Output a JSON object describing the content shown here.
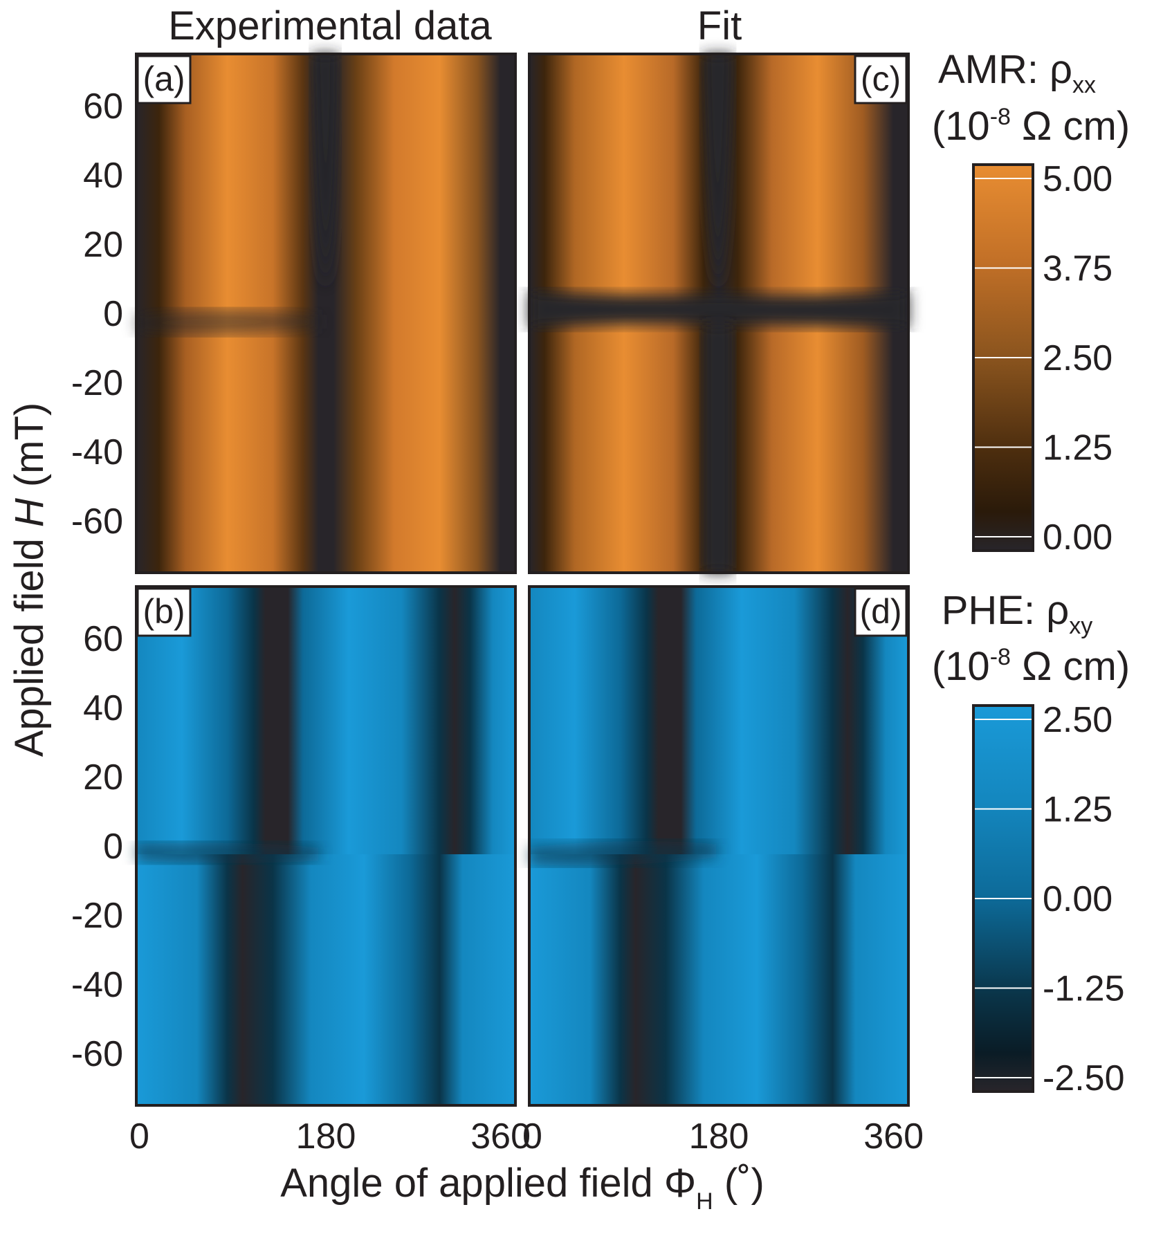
{
  "column_titles": {
    "left": "Experimental data",
    "right": "Fit"
  },
  "ylabel": {
    "prefix": "Applied field ",
    "var": "H",
    "suffix": " (mT)"
  },
  "xlabel": {
    "prefix": "Angle of applied field ",
    "var": "Φ",
    "sub": "H",
    "suffix": " (˚)"
  },
  "colorbar_amr": {
    "title_main": "AMR: ρ",
    "title_sub": "xx",
    "units_a": "(10",
    "units_sup": "-8",
    "units_b": " Ω cm)",
    "ticks": [
      "5.00",
      "3.75",
      "2.50",
      "1.25",
      "0.00"
    ],
    "colors": [
      "#e88d32",
      "#b86a28",
      "#7a4a1c",
      "#3d250c",
      "#28252a"
    ]
  },
  "colorbar_phe": {
    "title_main": "PHE: ρ",
    "title_sub": "xy",
    "units_a": "(10",
    "units_sup": "-8",
    "units_b": " Ω cm)",
    "ticks": [
      "2.50",
      "1.25",
      "0.00",
      "-1.25",
      "-2.50"
    ],
    "colors": [
      "#1a9ad8",
      "#1487bf",
      "#0d6a98",
      "#0a3448",
      "#28252a"
    ]
  },
  "panels": [
    {
      "id": "a",
      "label": "(a)",
      "type": "amr"
    },
    {
      "id": "c",
      "label": "(c)",
      "type": "amr"
    },
    {
      "id": "b",
      "label": "(b)",
      "type": "phe"
    },
    {
      "id": "d",
      "label": "(d)",
      "type": "phe"
    }
  ],
  "chart_data": {
    "type": "heatmap",
    "x": {
      "label": "Angle of applied field Φ_H (˚)",
      "range": [
        0,
        360
      ],
      "ticks": [
        "0",
        "180",
        "360"
      ]
    },
    "y": {
      "label": "Applied field H (mT)",
      "range": [
        -75,
        75
      ],
      "ticks": [
        "60",
        "40",
        "20",
        "0",
        "-20",
        "-40",
        "-60"
      ]
    },
    "panels": [
      {
        "panel": "(a)",
        "quantity": "AMR ρxx",
        "source": "Experimental data",
        "zrange": [
          0,
          5
        ],
        "colormap": "orange"
      },
      {
        "panel": "(c)",
        "quantity": "AMR ρxx",
        "source": "Fit",
        "zrange": [
          0,
          5
        ],
        "colormap": "orange"
      },
      {
        "panel": "(b)",
        "quantity": "PHE ρxy",
        "source": "Experimental data",
        "zrange": [
          -2.5,
          2.5
        ],
        "colormap": "blue"
      },
      {
        "panel": "(d)",
        "quantity": "PHE ρxy",
        "source": "Fit",
        "zrange": [
          -2.5,
          2.5
        ],
        "colormap": "blue"
      }
    ]
  }
}
